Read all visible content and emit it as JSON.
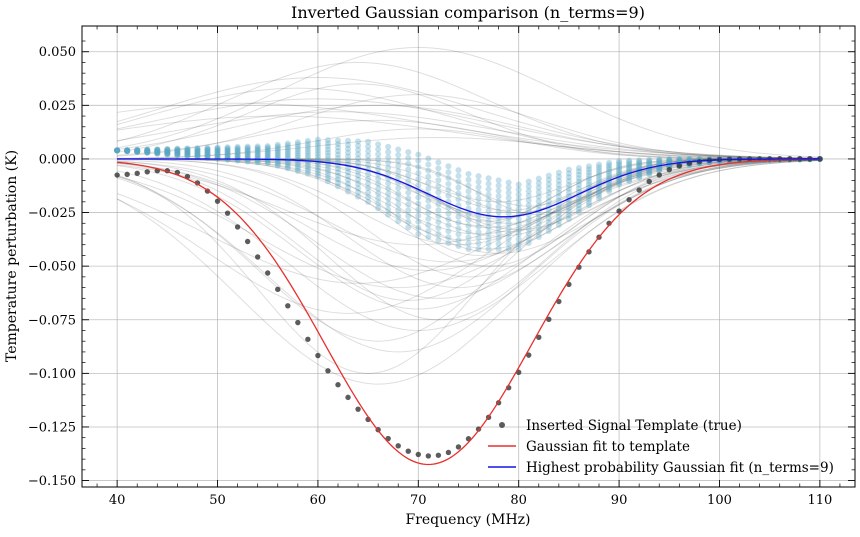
{
  "chart_data": {
    "type": "line",
    "title": "Inverted Gaussian comparison (n_terms=9)",
    "xlabel": "Frequency (MHz)",
    "ylabel": "Temperature perturbation (K)",
    "xlim": [
      36.5,
      113.5
    ],
    "ylim": [
      -0.153,
      0.062
    ],
    "xticks": [
      40,
      50,
      60,
      70,
      80,
      90,
      100,
      110
    ],
    "xtick_labels": [
      "40",
      "50",
      "60",
      "70",
      "80",
      "90",
      "100",
      "110"
    ],
    "yticks": [
      0.05,
      0.025,
      0.0,
      -0.025,
      -0.05,
      -0.075,
      -0.1,
      -0.125,
      -0.15
    ],
    "ytick_labels": [
      "0.050",
      "0.025",
      "0.000",
      "−0.025",
      "−0.050",
      "−0.075",
      "−0.100",
      "−0.125",
      "−0.150"
    ],
    "grid": true,
    "legend_position": "lower-right",
    "series": [
      {
        "name": "Inserted Signal Template (true)",
        "kind": "scatter",
        "color": "#333333",
        "x": [
          40,
          41,
          42,
          43,
          44,
          45,
          46,
          47,
          48,
          49,
          50,
          51,
          52,
          53,
          54,
          55,
          56,
          57,
          58,
          59,
          60,
          61,
          62,
          63,
          64,
          65,
          66,
          67,
          68,
          69,
          70,
          71,
          72,
          73,
          74,
          75,
          76,
          77,
          78,
          79,
          80,
          81,
          82,
          83,
          84,
          85,
          86,
          87,
          88,
          89,
          90,
          91,
          92,
          93,
          94,
          95,
          96,
          97,
          98,
          99,
          100,
          101,
          102,
          103,
          104,
          105,
          106,
          107,
          108,
          109,
          110
        ],
        "values": [
          -0.0075,
          -0.0072,
          -0.0067,
          -0.006,
          -0.0055,
          -0.0055,
          -0.0063,
          -0.0082,
          -0.0112,
          -0.015,
          -0.0197,
          -0.0253,
          -0.0317,
          -0.0385,
          -0.0457,
          -0.0532,
          -0.0608,
          -0.0685,
          -0.0763,
          -0.0841,
          -0.0917,
          -0.0988,
          -0.1053,
          -0.1112,
          -0.1167,
          -0.1215,
          -0.1263,
          -0.1304,
          -0.1338,
          -0.1363,
          -0.1378,
          -0.1385,
          -0.1382,
          -0.1369,
          -0.1343,
          -0.1305,
          -0.126,
          -0.1205,
          -0.1137,
          -0.1067,
          -0.0995,
          -0.0915,
          -0.0832,
          -0.0748,
          -0.0665,
          -0.0585,
          -0.0505,
          -0.0433,
          -0.0365,
          -0.03,
          -0.0243,
          -0.019,
          -0.0145,
          -0.0105,
          -0.0075,
          -0.005,
          -0.0032,
          -0.002,
          -0.0012,
          -0.0006,
          -0.0003,
          -0.0001,
          0,
          0,
          0,
          0,
          0,
          0,
          0,
          0,
          0
        ]
      },
      {
        "name": "Gaussian fit to template",
        "kind": "line",
        "color": "#e8302c",
        "amplitude": -0.1425,
        "center": 71.0,
        "sigma": 10.3,
        "x_range": [
          40,
          110
        ]
      },
      {
        "name": "Highest probability Gaussian fit (n_terms=9)",
        "kind": "line",
        "color": "#1414e6",
        "amplitude": -0.027,
        "center": 78.5,
        "sigma": 7.5,
        "x_range": [
          40,
          110
        ]
      },
      {
        "name": "",
        "kind": "posterior-band",
        "color": "#5aa6c4",
        "x_range": [
          40,
          110
        ],
        "x_step": 1,
        "points_per_x": 14,
        "envelope": [
          {
            "x": 40,
            "min": 0.004,
            "max": 0.004
          },
          {
            "x": 55,
            "min": -0.002,
            "max": 0.006
          },
          {
            "x": 60,
            "min": -0.008,
            "max": 0.009
          },
          {
            "x": 65,
            "min": -0.02,
            "max": 0.008
          },
          {
            "x": 70,
            "min": -0.035,
            "max": 0.002
          },
          {
            "x": 75,
            "min": -0.042,
            "max": -0.007
          },
          {
            "x": 80,
            "min": -0.042,
            "max": -0.012
          },
          {
            "x": 85,
            "min": -0.028,
            "max": -0.005
          },
          {
            "x": 90,
            "min": -0.012,
            "max": -0.001
          },
          {
            "x": 95,
            "min": -0.004,
            "max": 0
          },
          {
            "x": 100,
            "min": -0.001,
            "max": 0
          },
          {
            "x": 110,
            "min": 0,
            "max": 0
          }
        ]
      },
      {
        "name": "",
        "kind": "posterior-samples",
        "color": "#000000",
        "x_range": [
          40,
          110
        ],
        "gaussians": [
          [
            -0.028,
            78,
            7
          ],
          [
            -0.032,
            77,
            8
          ],
          [
            -0.025,
            80,
            6.5
          ],
          [
            -0.035,
            76,
            9
          ],
          [
            -0.03,
            79,
            7.5
          ],
          [
            -0.022,
            81,
            6
          ],
          [
            -0.038,
            75,
            9
          ],
          [
            -0.027,
            78,
            8
          ],
          [
            -0.042,
            77,
            8
          ],
          [
            -0.045,
            76,
            8
          ],
          [
            -0.024,
            79,
            7
          ],
          [
            -0.033,
            80,
            8
          ],
          [
            -0.029,
            77,
            6.5
          ],
          [
            -0.036,
            78,
            9
          ],
          [
            -0.031,
            76,
            7
          ],
          [
            -0.026,
            82,
            6
          ],
          [
            -0.04,
            74,
            10
          ],
          [
            -0.034,
            79,
            6.5
          ],
          [
            -0.02,
            78,
            7
          ],
          [
            -0.044,
            78,
            10
          ],
          [
            -0.05,
            77,
            9
          ],
          [
            -0.055,
            75,
            10
          ],
          [
            -0.06,
            74,
            11
          ],
          [
            -0.065,
            72,
            12
          ],
          [
            -0.07,
            70,
            12
          ],
          [
            -0.09,
            68,
            13
          ],
          [
            -0.105,
            66,
            14
          ],
          [
            -0.08,
            70,
            13
          ],
          [
            -0.075,
            72,
            11
          ],
          [
            -0.085,
            66,
            12
          ],
          [
            -0.058,
            64,
            15
          ],
          [
            -0.048,
            73,
            12
          ],
          [
            -0.1,
            65,
            11
          ],
          [
            -0.06,
            68,
            14
          ],
          [
            -0.04,
            70,
            13
          ],
          [
            -0.052,
            71,
            12
          ],
          [
            -0.066,
            69,
            11
          ],
          [
            -0.072,
            63,
            14
          ],
          [
            0.052,
            70,
            14
          ],
          [
            0.045,
            64,
            13
          ],
          [
            0.038,
            60,
            16
          ],
          [
            0.035,
            64,
            11
          ],
          [
            0.03,
            70,
            12
          ],
          [
            0.025,
            66,
            14
          ],
          [
            0.033,
            58,
            15
          ],
          [
            0.028,
            60,
            17
          ],
          [
            0.022,
            62,
            16
          ],
          [
            0.018,
            66,
            12
          ],
          [
            0.014,
            70,
            10
          ],
          [
            0.01,
            72,
            12
          ],
          [
            0.02,
            56,
            18
          ],
          [
            0.026,
            52,
            20
          ]
        ]
      }
    ]
  },
  "legend": {
    "items": [
      {
        "label": "Inserted Signal Template (true)",
        "marker": "dot"
      },
      {
        "label": "Gaussian fit to template",
        "marker": "line"
      },
      {
        "label": "Highest probability Gaussian fit (n_terms=9)",
        "marker": "line"
      }
    ]
  }
}
